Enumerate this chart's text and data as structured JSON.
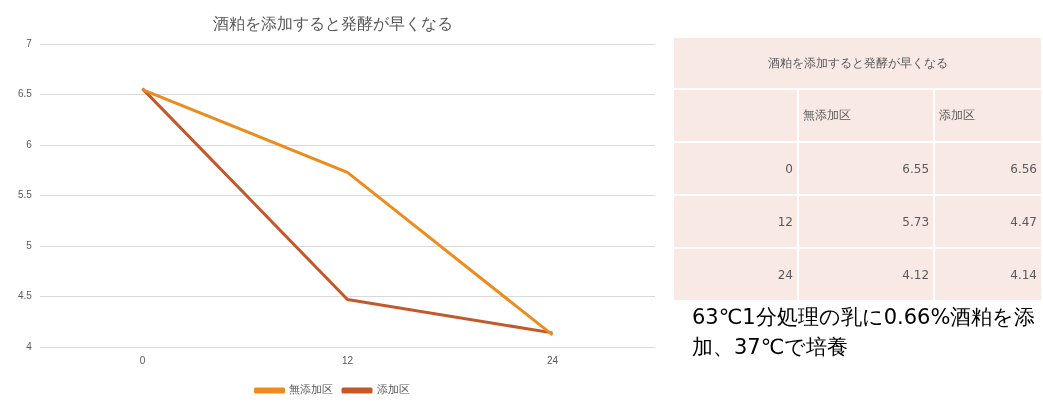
{
  "chart_data": [
    {
      "type": "line",
      "title": "酒粕を添加すると発酵が早くなる",
      "categories": [
        "0",
        "12",
        "24"
      ],
      "series": [
        {
          "name": "無添加区",
          "color": "#ed8b1c",
          "values": [
            6.55,
            5.73,
            4.12
          ]
        },
        {
          "name": "添加区",
          "color": "#c4582b",
          "values": [
            6.56,
            4.47,
            4.14
          ]
        }
      ],
      "ylim": [
        4,
        7
      ],
      "yticks": [
        4,
        4.5,
        5,
        5.5,
        6,
        6.5,
        7
      ],
      "grid": "y",
      "legend": "bottom",
      "marker": "none",
      "line_style": "solid"
    },
    {
      "type": "other",
      "title": "酒粕を添加すると発酵が早くなる",
      "categories": [
        "0",
        "12",
        "24"
      ],
      "series": [
        {
          "name": "無添加区",
          "values": [
            6.55,
            5.73,
            4.12
          ]
        },
        {
          "name": "添加区",
          "values": [
            6.56,
            4.47,
            4.14
          ]
        }
      ],
      "data_labels": true,
      "annotations": [
        "63℃1分処理の乳に0.66%酒粕を添加、37℃で培養"
      ]
    }
  ]
}
